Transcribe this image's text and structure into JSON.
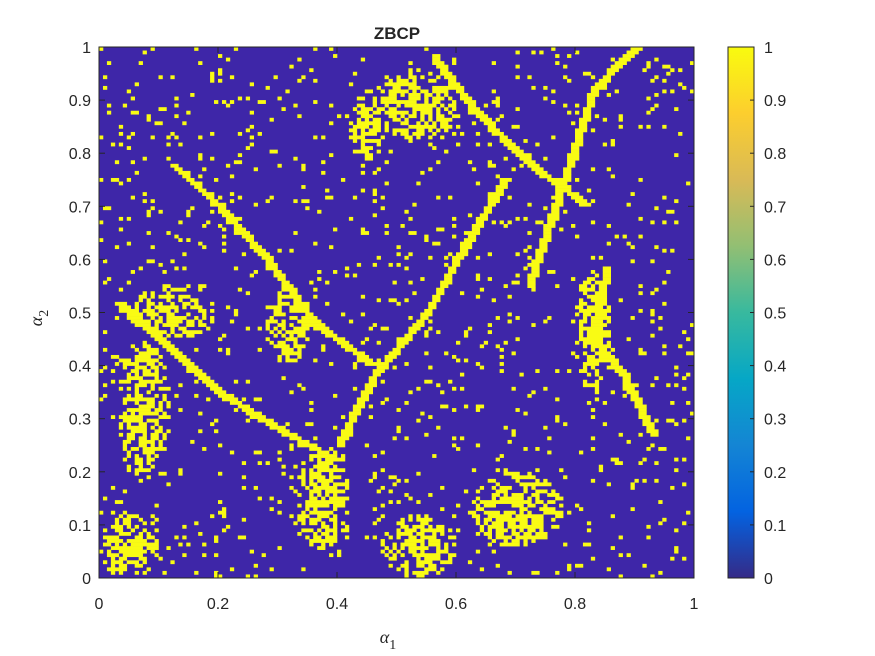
{
  "chart_data": {
    "type": "heatmap",
    "title": "ZBCP",
    "xlabel": {
      "symbol": "α",
      "subscript": "1"
    },
    "ylabel": {
      "symbol": "α",
      "subscript": "2"
    },
    "xlim": [
      0,
      1
    ],
    "ylim": [
      0,
      1
    ],
    "xticks": [
      0,
      0.2,
      0.4,
      0.6,
      0.8,
      1
    ],
    "xtick_labels": [
      "0",
      "0.2",
      "0.4",
      "0.6",
      "0.8",
      "1"
    ],
    "yticks": [
      0,
      0.1,
      0.2,
      0.3,
      0.4,
      0.5,
      0.6,
      0.7,
      0.8,
      0.9,
      1
    ],
    "ytick_labels": [
      "0",
      "0.1",
      "0.2",
      "0.3",
      "0.4",
      "0.5",
      "0.6",
      "0.7",
      "0.8",
      "0.9",
      "1"
    ],
    "grid": false,
    "colormap": "parula",
    "colormap_stops": [
      "#352a87",
      "#0363e1",
      "#1485d4",
      "#06a7c6",
      "#38b99e",
      "#92bf73",
      "#d9ba56",
      "#fcce2e",
      "#f9fb0e"
    ],
    "low_color": "#3e26a8",
    "high_color": "#f9fb14",
    "colorbar": {
      "range": [
        0,
        1
      ],
      "ticks": [
        0,
        0.1,
        0.2,
        0.3,
        0.4,
        0.5,
        0.6,
        0.7,
        0.8,
        0.9,
        1
      ],
      "tick_labels": [
        "0",
        "0.1",
        "0.2",
        "0.3",
        "0.4",
        "0.5",
        "0.6",
        "0.7",
        "0.8",
        "0.9",
        "1"
      ]
    },
    "values_binary": [
      0,
      1
    ],
    "highlighted_regions": [
      {
        "value": 1,
        "x": [
          0.0,
          0.1
        ],
        "y": [
          0.0,
          0.12
        ]
      },
      {
        "value": 1,
        "x": [
          0.03,
          0.12
        ],
        "y": [
          0.18,
          0.45
        ]
      },
      {
        "value": 1,
        "x": [
          0.33,
          0.42
        ],
        "y": [
          0.05,
          0.25
        ]
      },
      {
        "value": 1,
        "x": [
          0.62,
          0.78
        ],
        "y": [
          0.06,
          0.2
        ]
      },
      {
        "value": 1,
        "x": [
          0.47,
          0.6
        ],
        "y": [
          0.0,
          0.12
        ]
      },
      {
        "value": 1,
        "x": [
          0.47,
          0.6
        ],
        "y": [
          0.82,
          0.96
        ]
      },
      {
        "value": 1,
        "x": [
          0.42,
          0.48
        ],
        "y": [
          0.78,
          0.92
        ]
      },
      {
        "value": 1,
        "x": [
          0.8,
          0.86
        ],
        "y": [
          0.35,
          0.58
        ]
      },
      {
        "value": 1,
        "x": [
          0.28,
          0.36
        ],
        "y": [
          0.4,
          0.55
        ]
      },
      {
        "value": 1,
        "x": [
          0.05,
          0.2
        ],
        "y": [
          0.45,
          0.55
        ]
      }
    ],
    "line_structures": [
      {
        "value": 1,
        "points": [
          [
            0.85,
            0.58
          ],
          [
            0.83,
            0.45
          ],
          [
            0.88,
            0.38
          ],
          [
            0.93,
            0.27
          ]
        ]
      },
      {
        "value": 1,
        "points": [
          [
            0.72,
            0.55
          ],
          [
            0.78,
            0.75
          ],
          [
            0.83,
            0.92
          ],
          [
            0.9,
            1.0
          ]
        ]
      },
      {
        "value": 1,
        "points": [
          [
            0.4,
            0.25
          ],
          [
            0.46,
            0.38
          ],
          [
            0.55,
            0.5
          ],
          [
            0.6,
            0.6
          ],
          [
            0.68,
            0.75
          ]
        ]
      },
      {
        "value": 1,
        "points": [
          [
            0.03,
            0.52
          ],
          [
            0.1,
            0.45
          ],
          [
            0.2,
            0.35
          ],
          [
            0.3,
            0.28
          ],
          [
            0.4,
            0.22
          ]
        ]
      },
      {
        "value": 1,
        "points": [
          [
            0.12,
            0.78
          ],
          [
            0.2,
            0.7
          ],
          [
            0.28,
            0.6
          ],
          [
            0.36,
            0.48
          ],
          [
            0.46,
            0.4
          ]
        ]
      },
      {
        "value": 1,
        "points": [
          [
            0.56,
            0.98
          ],
          [
            0.63,
            0.88
          ],
          [
            0.72,
            0.78
          ],
          [
            0.82,
            0.7
          ]
        ]
      }
    ],
    "noise_density": 0.045,
    "grid_cells": 150
  }
}
